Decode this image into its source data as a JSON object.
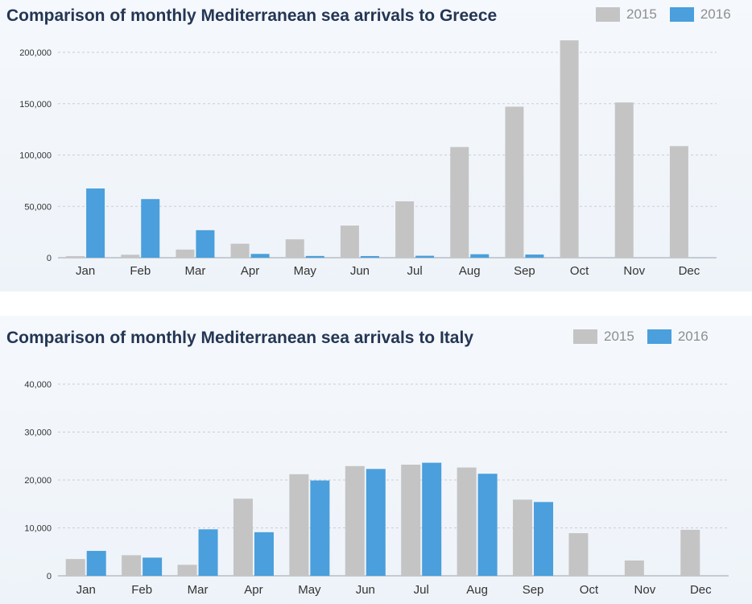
{
  "colors": {
    "y2015": "#c4c4c4",
    "y2016": "#4a9fdc",
    "grid": "#c9cfd8",
    "axis": "#9aa3ad",
    "title": "#243654"
  },
  "chart_data": [
    {
      "type": "bar",
      "title": "Comparison of monthly Mediterranean sea arrivals to Greece",
      "categories": [
        "Jan",
        "Feb",
        "Mar",
        "Apr",
        "May",
        "Jun",
        "Jul",
        "Aug",
        "Sep",
        "Oct",
        "Nov",
        "Dec"
      ],
      "series": [
        {
          "name": "2015",
          "values": [
            1500,
            2900,
            7900,
            13600,
            17900,
            31300,
            54900,
            107800,
            147100,
            211700,
            151200,
            108700
          ]
        },
        {
          "name": "2016",
          "values": [
            67400,
            57100,
            26800,
            3700,
            1700,
            1600,
            1900,
            3400,
            3100,
            0,
            0,
            0
          ]
        }
      ],
      "yticks": [
        "0",
        "50,000",
        "100,000",
        "150,000",
        "200,000"
      ],
      "ylim": [
        0,
        200000
      ],
      "grid": true,
      "legend": "top-right"
    },
    {
      "type": "bar",
      "title": "Comparison of monthly Mediterranean sea arrivals to Italy",
      "categories": [
        "Jan",
        "Feb",
        "Mar",
        "Apr",
        "May",
        "Jun",
        "Jul",
        "Aug",
        "Sep",
        "Oct",
        "Nov",
        "Dec"
      ],
      "series": [
        {
          "name": "2015",
          "values": [
            3500,
            4300,
            2300,
            16100,
            21200,
            22900,
            23200,
            22600,
            15900,
            8900,
            3200,
            9600
          ]
        },
        {
          "name": "2016",
          "values": [
            5200,
            3800,
            9700,
            9100,
            19900,
            22300,
            23600,
            21300,
            15400,
            0,
            0,
            0
          ]
        }
      ],
      "yticks": [
        "0",
        "10,000",
        "20,000",
        "30,000",
        "40,000"
      ],
      "ylim": [
        0,
        40000
      ],
      "grid": true,
      "legend": "top-right"
    }
  ]
}
